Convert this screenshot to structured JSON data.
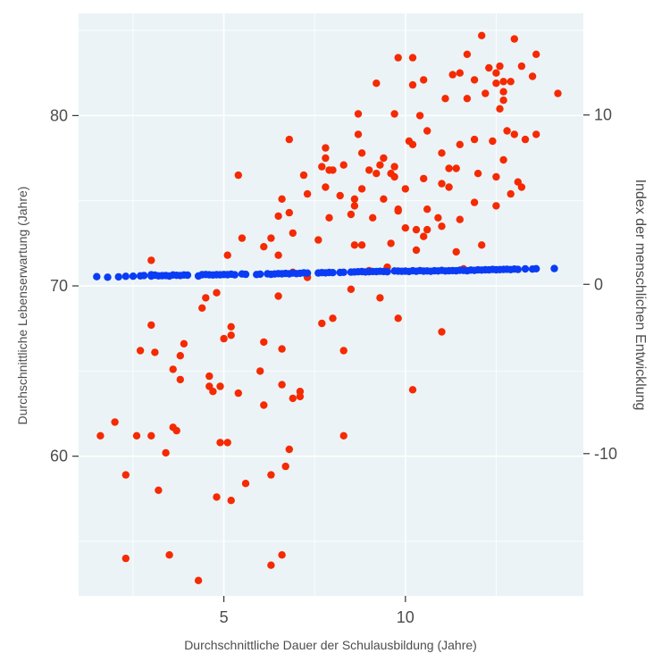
{
  "chart_data": {
    "type": "scatter",
    "title": "",
    "xlabel": "Durchschnittliche Dauer der Schulausbildung (Jahre)",
    "ylabel_left": "Durchschnittliche Lebenserwartung (Jahre)",
    "ylabel_right": "Index der menschlichen Entwicklung",
    "xlim": [
      1.0,
      14.9
    ],
    "ylim_left": [
      51.8,
      86.0
    ],
    "ylim_right": [
      -18.4,
      16.0
    ],
    "x_ticks": [
      {
        "value": 5,
        "label": "5"
      },
      {
        "value": 10,
        "label": "10"
      }
    ],
    "y_left_ticks": [
      {
        "value": 60,
        "label": "60"
      },
      {
        "value": 70,
        "label": "70"
      },
      {
        "value": 80,
        "label": "80"
      }
    ],
    "y_right_ticks": [
      {
        "value": -10,
        "label": "-10"
      },
      {
        "value": 0,
        "label": "0"
      },
      {
        "value": 10,
        "label": "10"
      }
    ],
    "grid": true,
    "legend": "none",
    "colors": {
      "panel": "#ebf3f6",
      "grid": "#ffffff",
      "axis_text": "#4d4d4d",
      "series_life_expectancy": "#f52a00",
      "series_hdi": "#0a3cf5"
    },
    "series": [
      {
        "axis": "left",
        "color": "#f52a00",
        "points": [
          [
            1.6,
            61.2
          ],
          [
            2.0,
            62.0
          ],
          [
            2.3,
            58.9
          ],
          [
            2.3,
            54.0
          ],
          [
            2.6,
            61.2
          ],
          [
            2.7,
            66.2
          ],
          [
            3.0,
            67.7
          ],
          [
            3.0,
            71.5
          ],
          [
            3.0,
            61.2
          ],
          [
            3.1,
            66.1
          ],
          [
            3.2,
            58.0
          ],
          [
            3.4,
            60.2
          ],
          [
            3.5,
            54.2
          ],
          [
            3.6,
            65.1
          ],
          [
            3.6,
            61.7
          ],
          [
            3.7,
            61.5
          ],
          [
            3.8,
            64.5
          ],
          [
            3.8,
            65.9
          ],
          [
            3.9,
            66.6
          ],
          [
            4.3,
            52.7
          ],
          [
            4.4,
            68.7
          ],
          [
            4.5,
            69.3
          ],
          [
            4.6,
            64.7
          ],
          [
            4.6,
            64.1
          ],
          [
            4.7,
            63.8
          ],
          [
            4.8,
            57.6
          ],
          [
            4.8,
            69.6
          ],
          [
            4.9,
            60.8
          ],
          [
            4.9,
            64.1
          ],
          [
            5.0,
            66.9
          ],
          [
            5.1,
            60.8
          ],
          [
            5.1,
            71.8
          ],
          [
            5.2,
            67.6
          ],
          [
            5.2,
            67.1
          ],
          [
            5.2,
            57.4
          ],
          [
            5.4,
            63.7
          ],
          [
            5.4,
            76.5
          ],
          [
            5.5,
            72.8
          ],
          [
            5.6,
            58.4
          ],
          [
            6.0,
            65.0
          ],
          [
            6.1,
            63.0
          ],
          [
            6.1,
            66.7
          ],
          [
            6.1,
            72.3
          ],
          [
            6.3,
            72.8
          ],
          [
            6.3,
            53.6
          ],
          [
            6.3,
            58.9
          ],
          [
            6.5,
            71.8
          ],
          [
            6.5,
            74.1
          ],
          [
            6.5,
            69.4
          ],
          [
            6.6,
            64.2
          ],
          [
            6.6,
            54.2
          ],
          [
            6.6,
            66.3
          ],
          [
            6.6,
            75.1
          ],
          [
            6.7,
            59.4
          ],
          [
            6.8,
            60.4
          ],
          [
            6.8,
            74.3
          ],
          [
            6.8,
            78.6
          ],
          [
            6.9,
            63.4
          ],
          [
            6.9,
            73.1
          ],
          [
            6.9,
            70.8
          ],
          [
            7.1,
            63.5
          ],
          [
            7.1,
            63.8
          ],
          [
            7.2,
            76.5
          ],
          [
            7.3,
            75.4
          ],
          [
            7.3,
            70.5
          ],
          [
            7.6,
            72.7
          ],
          [
            7.7,
            67.8
          ],
          [
            7.7,
            77.0
          ],
          [
            7.8,
            77.5
          ],
          [
            7.8,
            78.1
          ],
          [
            7.8,
            75.8
          ],
          [
            7.9,
            76.8
          ],
          [
            7.9,
            74.0
          ],
          [
            8.0,
            68.1
          ],
          [
            8.0,
            76.8
          ],
          [
            8.2,
            75.3
          ],
          [
            8.3,
            77.1
          ],
          [
            8.3,
            61.2
          ],
          [
            8.3,
            66.2
          ],
          [
            8.5,
            69.8
          ],
          [
            8.5,
            74.2
          ],
          [
            8.6,
            74.7
          ],
          [
            8.6,
            75.1
          ],
          [
            8.6,
            72.4
          ],
          [
            8.7,
            78.9
          ],
          [
            8.7,
            80.1
          ],
          [
            8.8,
            72.4
          ],
          [
            8.8,
            75.7
          ],
          [
            8.8,
            77.8
          ],
          [
            9.0,
            76.8
          ],
          [
            9.0,
            70.9
          ],
          [
            9.1,
            74.0
          ],
          [
            9.2,
            76.6
          ],
          [
            9.2,
            81.9
          ],
          [
            9.3,
            77.1
          ],
          [
            9.3,
            69.3
          ],
          [
            9.4,
            75.1
          ],
          [
            9.4,
            77.5
          ],
          [
            9.5,
            71.1
          ],
          [
            9.6,
            72.5
          ],
          [
            9.6,
            76.6
          ],
          [
            9.7,
            80.1
          ],
          [
            9.7,
            77.0
          ],
          [
            9.7,
            76.4
          ],
          [
            9.8,
            83.4
          ],
          [
            9.8,
            74.5
          ],
          [
            9.8,
            68.1
          ],
          [
            9.8,
            74.4
          ],
          [
            10.0,
            75.7
          ],
          [
            10.0,
            73.4
          ],
          [
            10.1,
            78.5
          ],
          [
            10.2,
            83.4
          ],
          [
            10.2,
            78.3
          ],
          [
            10.2,
            81.8
          ],
          [
            10.2,
            63.9
          ],
          [
            10.3,
            72.1
          ],
          [
            10.3,
            73.3
          ],
          [
            10.4,
            80.0
          ],
          [
            10.5,
            72.9
          ],
          [
            10.5,
            76.3
          ],
          [
            10.5,
            82.1
          ],
          [
            10.6,
            79.1
          ],
          [
            10.6,
            74.5
          ],
          [
            10.6,
            73.3
          ],
          [
            10.9,
            74.0
          ],
          [
            11.0,
            73.5
          ],
          [
            11.0,
            77.8
          ],
          [
            11.0,
            67.3
          ],
          [
            11.0,
            76.0
          ],
          [
            11.1,
            81.0
          ],
          [
            11.2,
            75.8
          ],
          [
            11.2,
            76.9
          ],
          [
            11.3,
            82.4
          ],
          [
            11.4,
            72.0
          ],
          [
            11.4,
            76.9
          ],
          [
            11.5,
            82.5
          ],
          [
            11.5,
            78.3
          ],
          [
            11.5,
            73.9
          ],
          [
            11.6,
            71.0
          ],
          [
            11.7,
            83.6
          ],
          [
            11.7,
            81.0
          ],
          [
            11.9,
            74.9
          ],
          [
            11.9,
            82.1
          ],
          [
            11.9,
            78.6
          ],
          [
            12.0,
            76.6
          ],
          [
            12.1,
            84.7
          ],
          [
            12.1,
            72.4
          ],
          [
            12.2,
            81.3
          ],
          [
            12.3,
            82.8
          ],
          [
            12.4,
            78.5
          ],
          [
            12.5,
            82.5
          ],
          [
            12.5,
            81.9
          ],
          [
            12.5,
            74.7
          ],
          [
            12.5,
            76.4
          ],
          [
            12.6,
            82.9
          ],
          [
            12.6,
            80.4
          ],
          [
            12.7,
            81.4
          ],
          [
            12.7,
            82.0
          ],
          [
            12.7,
            77.4
          ],
          [
            12.7,
            80.9
          ],
          [
            12.8,
            79.1
          ],
          [
            12.9,
            82.0
          ],
          [
            12.9,
            75.4
          ],
          [
            13.0,
            84.5
          ],
          [
            13.0,
            78.9
          ],
          [
            13.1,
            76.1
          ],
          [
            13.2,
            82.9
          ],
          [
            13.2,
            75.8
          ],
          [
            13.3,
            78.6
          ],
          [
            13.5,
            82.3
          ],
          [
            13.6,
            83.6
          ],
          [
            13.6,
            78.9
          ],
          [
            14.2,
            81.3
          ]
        ]
      },
      {
        "axis": "right",
        "color": "#0a3cf5",
        "points": [
          [
            1.5,
            0.45
          ],
          [
            1.8,
            0.42
          ],
          [
            2.1,
            0.44
          ],
          [
            2.3,
            0.47
          ],
          [
            2.5,
            0.48
          ],
          [
            2.7,
            0.5
          ],
          [
            2.8,
            0.52
          ],
          [
            3.0,
            0.56
          ],
          [
            3.0,
            0.49
          ],
          [
            3.1,
            0.54
          ],
          [
            3.2,
            0.5
          ],
          [
            3.3,
            0.51
          ],
          [
            3.4,
            0.52
          ],
          [
            3.5,
            0.49
          ],
          [
            3.6,
            0.55
          ],
          [
            3.7,
            0.53
          ],
          [
            3.8,
            0.52
          ],
          [
            3.9,
            0.55
          ],
          [
            4.0,
            0.54
          ],
          [
            4.3,
            0.49
          ],
          [
            4.4,
            0.57
          ],
          [
            4.5,
            0.58
          ],
          [
            4.6,
            0.56
          ],
          [
            4.7,
            0.55
          ],
          [
            4.8,
            0.57
          ],
          [
            4.9,
            0.56
          ],
          [
            5.0,
            0.58
          ],
          [
            5.1,
            0.57
          ],
          [
            5.2,
            0.6
          ],
          [
            5.3,
            0.56
          ],
          [
            5.5,
            0.61
          ],
          [
            5.6,
            0.59
          ],
          [
            5.9,
            0.58
          ],
          [
            6.0,
            0.6
          ],
          [
            6.2,
            0.62
          ],
          [
            6.3,
            0.59
          ],
          [
            6.4,
            0.61
          ],
          [
            6.5,
            0.63
          ],
          [
            6.6,
            0.62
          ],
          [
            6.7,
            0.64
          ],
          [
            6.8,
            0.62
          ],
          [
            6.9,
            0.66
          ],
          [
            7.0,
            0.63
          ],
          [
            7.1,
            0.65
          ],
          [
            7.2,
            0.68
          ],
          [
            7.3,
            0.66
          ],
          [
            7.6,
            0.67
          ],
          [
            7.7,
            0.69
          ],
          [
            7.8,
            0.68
          ],
          [
            7.9,
            0.7
          ],
          [
            8.0,
            0.69
          ],
          [
            8.2,
            0.7
          ],
          [
            8.3,
            0.71
          ],
          [
            8.5,
            0.72
          ],
          [
            8.6,
            0.73
          ],
          [
            8.7,
            0.74
          ],
          [
            8.8,
            0.75
          ],
          [
            8.9,
            0.73
          ],
          [
            9.0,
            0.74
          ],
          [
            9.1,
            0.76
          ],
          [
            9.2,
            0.75
          ],
          [
            9.3,
            0.77
          ],
          [
            9.4,
            0.76
          ],
          [
            9.5,
            0.74
          ],
          [
            9.7,
            0.79
          ],
          [
            9.8,
            0.78
          ],
          [
            9.9,
            0.77
          ],
          [
            10.0,
            0.78
          ],
          [
            10.1,
            0.76
          ],
          [
            10.2,
            0.8
          ],
          [
            10.3,
            0.77
          ],
          [
            10.4,
            0.81
          ],
          [
            10.5,
            0.78
          ],
          [
            10.6,
            0.79
          ],
          [
            10.7,
            0.77
          ],
          [
            10.8,
            0.8
          ],
          [
            10.9,
            0.79
          ],
          [
            11.0,
            0.82
          ],
          [
            11.1,
            0.79
          ],
          [
            11.2,
            0.8
          ],
          [
            11.3,
            0.81
          ],
          [
            11.4,
            0.8
          ],
          [
            11.5,
            0.83
          ],
          [
            11.6,
            0.82
          ],
          [
            11.7,
            0.8
          ],
          [
            11.8,
            0.84
          ],
          [
            11.9,
            0.82
          ],
          [
            12.0,
            0.85
          ],
          [
            12.1,
            0.84
          ],
          [
            12.2,
            0.86
          ],
          [
            12.3,
            0.85
          ],
          [
            12.4,
            0.88
          ],
          [
            12.5,
            0.86
          ],
          [
            12.6,
            0.87
          ],
          [
            12.7,
            0.88
          ],
          [
            12.8,
            0.89
          ],
          [
            12.9,
            0.87
          ],
          [
            13.0,
            0.9
          ],
          [
            13.1,
            0.88
          ],
          [
            13.3,
            0.91
          ],
          [
            13.5,
            0.9
          ],
          [
            13.6,
            0.92
          ],
          [
            14.1,
            0.93
          ]
        ]
      }
    ]
  }
}
